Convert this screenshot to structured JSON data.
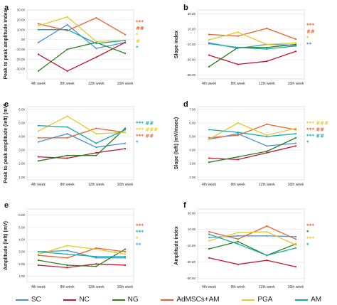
{
  "legend": [
    {
      "name": "SC",
      "color": "#4a90d9"
    },
    {
      "name": "NC",
      "color": "#c0152f"
    },
    {
      "name": "NG",
      "color": "#2e7d1e"
    },
    {
      "name": "AdMSCs+AM",
      "color": "#e8612c"
    },
    {
      "name": "PGA",
      "color": "#e8c82a"
    },
    {
      "name": "AM",
      "color": "#17a9a6"
    }
  ],
  "chart_data": [
    {
      "label": "a",
      "type": "line",
      "ylabel": "Peak to peak amplitude index",
      "categories": [
        "4th week",
        "8th week",
        "12th week",
        "16th week"
      ],
      "yticks": [
        "30.00",
        "20.00",
        "10.00",
        ".00",
        "-10.00",
        "-20.00",
        "-30.00"
      ],
      "ylim": [
        -40,
        30
      ],
      "series": [
        {
          "name": "SC",
          "values": [
            -3,
            15,
            -9,
            -3
          ]
        },
        {
          "name": "NC",
          "values": [
            -15,
            -32,
            -18,
            -3
          ]
        },
        {
          "name": "NG",
          "values": [
            -32,
            -10,
            -3,
            -14
          ]
        },
        {
          "name": "AdMSCs+AM",
          "values": [
            16,
            9,
            22,
            5
          ]
        },
        {
          "name": "PGA",
          "values": [
            14,
            23,
            -2,
            -1
          ]
        },
        {
          "name": "AM",
          "values": [
            10,
            10,
            -4,
            -1
          ]
        }
      ],
      "annotations": [
        {
          "text": "***",
          "color": "#e8612c"
        },
        {
          "text": "##",
          "color": "#e8612c"
        },
        {
          "text": "*",
          "color": "#e8c82a"
        },
        {
          "text": "#",
          "color": "#e8c82a"
        },
        {
          "text": "*",
          "color": "#17a9a6"
        }
      ]
    },
    {
      "label": "b",
      "type": "line",
      "ylabel": "Slope index",
      "categories": [
        "4th week",
        "8th week",
        "12th week",
        "16th week"
      ],
      "yticks": [
        "30.00",
        "10.00",
        "-10.00",
        "-30.00",
        "-50.00"
      ],
      "ylim": [
        -55,
        35
      ],
      "series": [
        {
          "name": "SC",
          "values": [
            -8,
            -15,
            -10,
            -11
          ]
        },
        {
          "name": "NC",
          "values": [
            -24,
            -36,
            -32,
            -19
          ]
        },
        {
          "name": "NG",
          "values": [
            -39,
            -14,
            -14,
            -10
          ]
        },
        {
          "name": "AdMSCs+AM",
          "values": [
            3,
            1,
            11,
            -3
          ]
        },
        {
          "name": "PGA",
          "values": [
            -4,
            6,
            -10,
            -8
          ]
        },
        {
          "name": "AM",
          "values": [
            -9,
            -14,
            -16,
            -12
          ]
        }
      ],
      "annotations": [
        {
          "text": "***",
          "color": "#e8612c"
        },
        {
          "text": "##",
          "color": "#e8612c"
        },
        {
          "text": "*",
          "color": "#e8c82a"
        },
        {
          "text": "**",
          "color": "#4a90d9"
        }
      ]
    },
    {
      "label": "c",
      "type": "line",
      "ylabel": "Peak to peak amplitude (left) (mV)",
      "categories": [
        "4th week",
        "8th week",
        "12th week",
        "16th week"
      ],
      "yticks": [
        "6.00",
        "5.00",
        "4.00",
        "3.00",
        "2.00",
        "1.00"
      ],
      "ylim": [
        0.8,
        6.2
      ],
      "series": [
        {
          "name": "SC",
          "values": [
            3.6,
            4.2,
            3.2,
            3.5
          ]
        },
        {
          "name": "NC",
          "values": [
            2.5,
            2.4,
            2.8,
            3.1
          ]
        },
        {
          "name": "NG",
          "values": [
            2.2,
            2.6,
            2.6,
            4.6
          ]
        },
        {
          "name": "AdMSCs+AM",
          "values": [
            3.9,
            3.9,
            4.6,
            4.3
          ]
        },
        {
          "name": "PGA",
          "values": [
            4.4,
            5.5,
            4.2,
            4.3
          ]
        },
        {
          "name": "AM",
          "values": [
            4.8,
            4.7,
            3.5,
            4.5
          ]
        }
      ],
      "annotations": [
        {
          "text": "*** ##",
          "color": "#17a9a6"
        },
        {
          "text": "*** ###",
          "color": "#e8c82a"
        },
        {
          "text": "*** ##",
          "color": "#e8612c"
        },
        {
          "text": "*",
          "color": "#4a90d9"
        }
      ]
    },
    {
      "label": "d",
      "type": "line",
      "ylabel": "Slope (left) (mV/msec)",
      "categories": [
        "4th week",
        "8th week",
        "12th week",
        "16th week"
      ],
      "yticks": [
        "7.00",
        "6.00",
        "5.00",
        "4.00",
        "3.00",
        "2.00"
      ],
      "ylim": [
        1.8,
        7.2
      ],
      "series": [
        {
          "name": "SC",
          "values": [
            4.8,
            5.2,
            4.3,
            4.5
          ]
        },
        {
          "name": "NC",
          "values": [
            3.4,
            3.3,
            3.8,
            4.3
          ]
        },
        {
          "name": "NG",
          "values": [
            3.1,
            3.5,
            3.9,
            4.9
          ]
        },
        {
          "name": "AdMSCs+AM",
          "values": [
            4.9,
            5.1,
            5.9,
            5.5
          ]
        },
        {
          "name": "PGA",
          "values": [
            4.8,
            6.0,
            5.1,
            5.6
          ]
        },
        {
          "name": "AM",
          "values": [
            5.5,
            5.3,
            5.0,
            5.2
          ]
        }
      ],
      "annotations": [
        {
          "text": "*** ###",
          "color": "#e8c82a"
        },
        {
          "text": "*** ##",
          "color": "#e8612c"
        },
        {
          "text": "*** ##",
          "color": "#17a9a6"
        },
        {
          "text": "*",
          "color": "#4a90d9"
        }
      ]
    },
    {
      "label": "e",
      "type": "line",
      "ylabel": "Amplitude (left) (mV)",
      "categories": [
        "4th week",
        "8th week",
        "12th week",
        "16th week"
      ],
      "yticks": [
        "6.00",
        "5.00",
        "4.00",
        "3.00",
        "2.00",
        "1.00"
      ],
      "ylim": [
        0.5,
        6.5
      ],
      "series": [
        {
          "name": "SC",
          "values": [
            3.0,
            3.1,
            2.5,
            2.5
          ]
        },
        {
          "name": "NC",
          "values": [
            1.9,
            1.7,
            2.0,
            1.9
          ]
        },
        {
          "name": "NG",
          "values": [
            2.3,
            1.9,
            1.8,
            3.2
          ]
        },
        {
          "name": "AdMSCs+AM",
          "values": [
            2.7,
            2.5,
            3.3,
            3.0
          ]
        },
        {
          "name": "PGA",
          "values": [
            2.8,
            3.5,
            3.2,
            2.8
          ]
        },
        {
          "name": "AM",
          "values": [
            3.0,
            2.8,
            2.6,
            2.6
          ]
        }
      ],
      "annotations": [
        {
          "text": "***",
          "color": "#e8612c"
        },
        {
          "text": "***",
          "color": "#17a9a6"
        },
        {
          "text": "*",
          "color": "#e8c82a"
        },
        {
          "text": "**",
          "color": "#4a90d9"
        }
      ]
    },
    {
      "label": "f",
      "type": "line",
      "ylabel": "Amplitude index",
      "categories": [
        "4th week",
        "8th week",
        "12th week",
        "16th week"
      ],
      "yticks": [
        "30.00",
        "10.00",
        "-10.00",
        "-30.00",
        "-50.00"
      ],
      "ylim": [
        -55,
        35
      ],
      "series": [
        {
          "name": "SC",
          "values": [
            0,
            2,
            2,
            1
          ]
        },
        {
          "name": "NC",
          "values": [
            -25,
            -33,
            -28,
            -36
          ]
        },
        {
          "name": "NG",
          "values": [
            -14,
            -5,
            -22,
            -8
          ]
        },
        {
          "name": "AdMSCs+AM",
          "values": [
            7,
            -2,
            14,
            -2
          ]
        },
        {
          "name": "PGA",
          "values": [
            -4,
            6,
            7,
            -9
          ]
        },
        {
          "name": "AM",
          "values": [
            4,
            -8,
            -22,
            -13
          ]
        }
      ],
      "annotations": [
        {
          "text": "***",
          "color": "#e8612c"
        },
        {
          "text": "*",
          "color": "#2e7d1e"
        },
        {
          "text": "***",
          "color": "#e8c82a"
        },
        {
          "text": "*",
          "color": "#17a9a6"
        }
      ]
    }
  ]
}
